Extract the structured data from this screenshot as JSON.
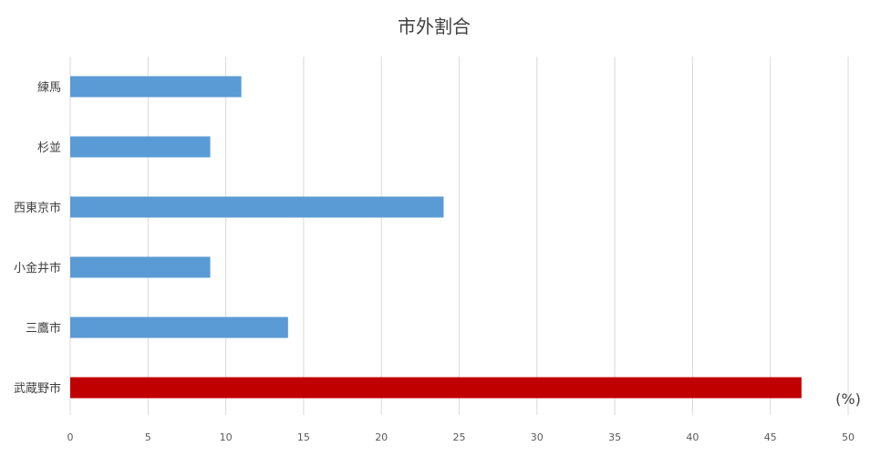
{
  "chart_data": {
    "type": "bar",
    "orientation": "horizontal",
    "title": "市外割合",
    "unit_label": "(%)",
    "categories": [
      "練馬",
      "杉並",
      "西東京市",
      "小金井市",
      "三鷹市",
      "武蔵野市"
    ],
    "values": [
      11,
      9,
      24,
      9,
      14,
      47
    ],
    "xlim": [
      0,
      50
    ],
    "x_ticks": [
      0,
      5,
      10,
      15,
      20,
      25,
      30,
      35,
      40,
      45,
      50
    ],
    "grid": true,
    "colors": {
      "default_bar": "#5b9bd5",
      "highlight_bar": "#c00000"
    },
    "highlight_category": "武蔵野市"
  }
}
